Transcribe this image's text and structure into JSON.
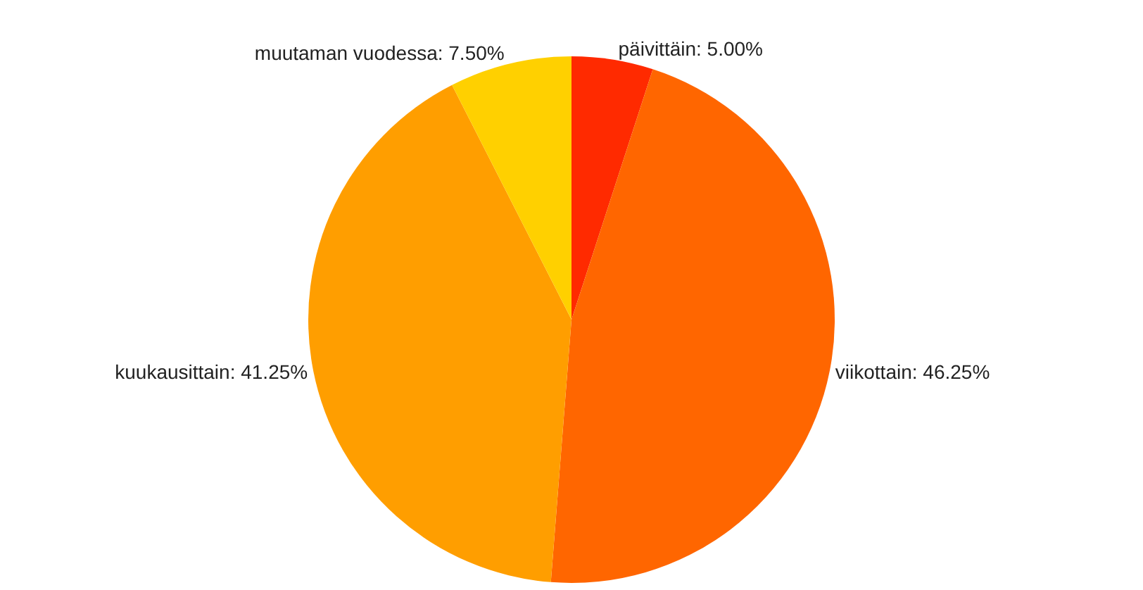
{
  "chart_data": {
    "type": "pie",
    "categories": [
      "päivittäin: 5.00%",
      "viikottain: 46.25%",
      "kuukausittain: 41.25%",
      "muutaman vuodessa: 7.50%"
    ],
    "values": [
      5.0,
      46.25,
      41.25,
      7.5
    ],
    "colors": [
      "#ff2a00",
      "#ff6600",
      "#ff9e00",
      "#ffd000"
    ],
    "data_labels": false,
    "legend": false
  }
}
